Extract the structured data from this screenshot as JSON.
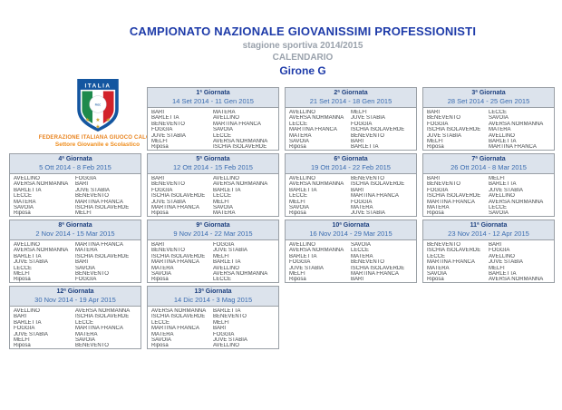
{
  "header": {
    "title": "CAMPIONATO NAZIONALE GIOVANISSIMI PROFESSIONISTI",
    "subtitle": "stagione sportiva 2014/2015",
    "calendar_label": "CALENDARIO",
    "group_label": "Girone G"
  },
  "logo": {
    "country": "ITALIA",
    "emblem": "FIGC",
    "federation": "FEDERAZIONE ITALIANA GIUOCO CALCIO",
    "sector": "Settore Giovanile e Scolastico"
  },
  "colors": {
    "title_blue": "#1e3ba9",
    "subtitle_gray": "#9aa2ac",
    "round_header_bg": "#dce3ec",
    "round_title_navy": "#1c3f7e",
    "round_date_blue": "#3a6cb0",
    "border_gray": "#9aa0a6",
    "federation_orange": "#e8821c",
    "shield_blue": "#1456a0",
    "stripe_green": "#1e8a4c",
    "stripe_red": "#d2232a",
    "star_gold": "#c9a227"
  },
  "rounds": [
    {
      "title": "1ª Giornata",
      "dates": "14 Set 2014 - 11 Gen 2015",
      "home": [
        "BARI",
        "BARLETTA",
        "BENEVENTO",
        "FOGGIA",
        "JUVE STABIA",
        "MELFI",
        "Riposa"
      ],
      "away": [
        "MATERA",
        "AVELLINO",
        "MARTINA FRANCA",
        "SAVOIA",
        "LECCE",
        "AVERSA NORMANNA",
        "ISCHIA ISOLAVERDE"
      ]
    },
    {
      "title": "2ª Giornata",
      "dates": "21 Set 2014 - 18 Gen 2015",
      "home": [
        "AVELLINO",
        "AVERSA NORMANNA",
        "LECCE",
        "MARTINA FRANCA",
        "MATERA",
        "SAVOIA",
        "Riposa"
      ],
      "away": [
        "MELFI",
        "JUVE STABIA",
        "FOGGIA",
        "ISCHIA ISOLAVERDE",
        "BENEVENTO",
        "BARI",
        "BARLETTA"
      ]
    },
    {
      "title": "3ª Giornata",
      "dates": "28 Set 2014 - 25 Gen 2015",
      "home": [
        "BARI",
        "BENEVENTO",
        "FOGGIA",
        "ISCHIA ISOLAVERDE",
        "JUVE STABIA",
        "MELFI",
        "Riposa"
      ],
      "away": [
        "LECCE",
        "SAVOIA",
        "AVERSA NORMANNA",
        "MATERA",
        "AVELLINO",
        "BARLETTA",
        "MARTINA FRANCA"
      ]
    },
    {
      "title": "4ª Giornata",
      "dates": "5 Ott 2014 - 8 Feb 2015",
      "home": [
        "AVELLINO",
        "AVERSA NORMANNA",
        "BARLETTA",
        "LECCE",
        "MATERA",
        "SAVOIA",
        "Riposa"
      ],
      "away": [
        "FOGGIA",
        "BARI",
        "JUVE STABIA",
        "BENEVENTO",
        "MARTINA FRANCA",
        "ISCHIA ISOLAVERDE",
        "MELFI"
      ]
    },
    {
      "title": "5ª Giornata",
      "dates": "12 Ott 2014 - 15 Feb 2015",
      "home": [
        "BARI",
        "BENEVENTO",
        "FOGGIA",
        "ISCHIA ISOLAVERDE",
        "JUVE STABIA",
        "MARTINA FRANCA",
        "Riposa"
      ],
      "away": [
        "AVELLINO",
        "AVERSA NORMANNA",
        "BARLETTA",
        "LECCE",
        "MELFI",
        "SAVOIA",
        "MATERA"
      ]
    },
    {
      "title": "6ª Giornata",
      "dates": "19 Ott 2014 - 22 Feb 2015",
      "home": [
        "AVELLINO",
        "AVERSA NORMANNA",
        "BARLETTA",
        "LECCE",
        "MELFI",
        "SAVOIA",
        "Riposa"
      ],
      "away": [
        "BENEVENTO",
        "ISCHIA ISOLAVERDE",
        "BARI",
        "MARTINA FRANCA",
        "FOGGIA",
        "MATERA",
        "JUVE STABIA"
      ]
    },
    {
      "title": "7ª Giornata",
      "dates": "26 Ott 2014 - 8 Mar 2015",
      "home": [
        "BARI",
        "BENEVENTO",
        "FOGGIA",
        "ISCHIA ISOLAVERDE",
        "MARTINA FRANCA",
        "MATERA",
        "Riposa"
      ],
      "away": [
        "MELFI",
        "BARLETTA",
        "JUVE STABIA",
        "AVELLINO",
        "AVERSA NORMANNA",
        "LECCE",
        "SAVOIA"
      ]
    },
    {
      "title": "8ª Giornata",
      "dates": "2 Nov 2014 - 15 Mar 2015",
      "home": [
        "AVELLINO",
        "AVERSA NORMANNA",
        "BARLETTA",
        "JUVE STABIA",
        "LECCE",
        "MELFI",
        "Riposa"
      ],
      "away": [
        "MARTINA FRANCA",
        "MATERA",
        "ISCHIA ISOLAVERDE",
        "BARI",
        "SAVOIA",
        "BENEVENTO",
        "FOGGIA"
      ]
    },
    {
      "title": "9ª Giornata",
      "dates": "9 Nov 2014 - 22 Mar 2015",
      "home": [
        "BARI",
        "BENEVENTO",
        "ISCHIA ISOLAVERDE",
        "MARTINA FRANCA",
        "MATERA",
        "SAVOIA",
        "Riposa"
      ],
      "away": [
        "FOGGIA",
        "JUVE STABIA",
        "MELFI",
        "BARLETTA",
        "AVELLINO",
        "AVERSA NORMANNA",
        "LECCE"
      ]
    },
    {
      "title": "10ª Giornata",
      "dates": "16 Nov 2014 - 29 Mar 2015",
      "home": [
        "AVELLINO",
        "AVERSA NORMANNA",
        "BARLETTA",
        "FOGGIA",
        "JUVE STABIA",
        "MELFI",
        "Riposa"
      ],
      "away": [
        "SAVOIA",
        "LECCE",
        "MATERA",
        "BENEVENTO",
        "ISCHIA ISOLAVERDE",
        "MARTINA FRANCA",
        "BARI"
      ]
    },
    {
      "title": "11ª Giornata",
      "dates": "23 Nov 2014 - 12 Apr 2015",
      "home": [
        "BENEVENTO",
        "ISCHIA ISOLAVERDE",
        "LECCE",
        "MARTINA FRANCA",
        "MATERA",
        "SAVOIA",
        "Riposa"
      ],
      "away": [
        "BARI",
        "FOGGIA",
        "AVELLINO",
        "JUVE STABIA",
        "MELFI",
        "BARLETTA",
        "AVERSA NORMANNA"
      ]
    },
    {
      "title": "12ª Giornata",
      "dates": "30 Nov 2014 - 19 Apr 2015",
      "home": [
        "AVELLINO",
        "BARI",
        "BARLETTA",
        "FOGGIA",
        "JUVE STABIA",
        "MELFI",
        "Riposa"
      ],
      "away": [
        "AVERSA NORMANNA",
        "ISCHIA ISOLAVERDE",
        "LECCE",
        "MARTINA FRANCA",
        "MATERA",
        "SAVOIA",
        "BENEVENTO"
      ]
    },
    {
      "title": "13ª Giornata",
      "dates": "14 Dic 2014 - 3 Mag 2015",
      "home": [
        "AVERSA NORMANNA",
        "ISCHIA ISOLAVERDE",
        "LECCE",
        "MARTINA FRANCA",
        "MATERA",
        "SAVOIA",
        "Riposa"
      ],
      "away": [
        "BARLETTA",
        "BENEVENTO",
        "MELFI",
        "BARI",
        "FOGGIA",
        "JUVE STABIA",
        "AVELLINO"
      ]
    }
  ]
}
